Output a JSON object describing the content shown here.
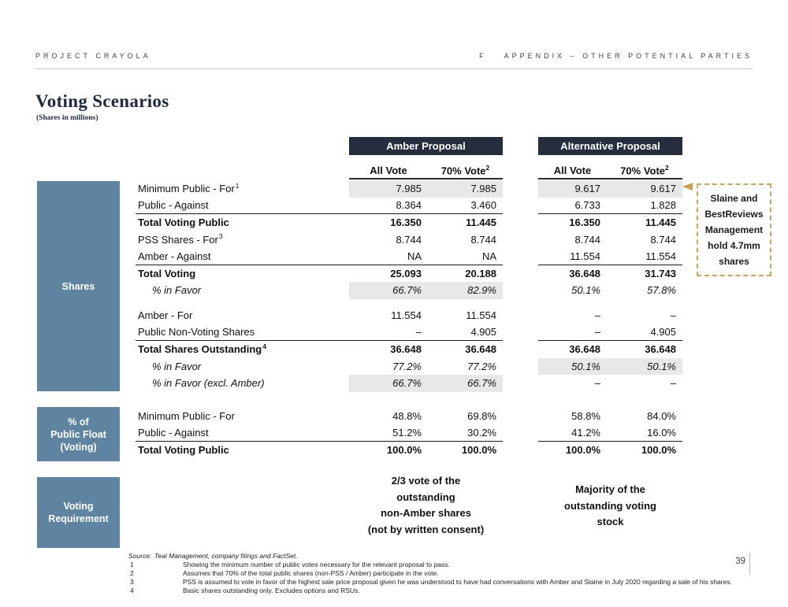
{
  "header": {
    "project": "PROJECT CRAYOLA",
    "section_letter": "F",
    "section_title": "APPENDIX – OTHER POTENTIAL PARTIES"
  },
  "title": "Voting Scenarios",
  "subtitle": "(Shares in millions)",
  "proposal_headers": {
    "amber": "Amber Proposal",
    "alternative": "Alternative Proposal"
  },
  "column_headers": {
    "all_vote": "All Vote",
    "pct_vote": "70% Vote",
    "pct_vote_sup": "2"
  },
  "sidebar": {
    "shares": {
      "lines": [
        "Shares"
      ]
    },
    "public_float": {
      "lines": [
        "% of",
        "Public Float",
        "(Voting)"
      ]
    },
    "voting_requirement": {
      "lines": [
        "Voting",
        "Requirement"
      ]
    }
  },
  "table": {
    "shares_rows": [
      {
        "label": "Minimum Public - For",
        "sup": "1",
        "cells": [
          "7.985",
          "7.985",
          "9.617",
          "9.617"
        ],
        "shade": [
          true,
          true
        ]
      },
      {
        "label": "Public - Against",
        "cells": [
          "8.364",
          "3.460",
          "6.733",
          "1.828"
        ],
        "underline": true
      },
      {
        "label": "Total Voting Public",
        "cells": [
          "16.350",
          "11.445",
          "16.350",
          "11.445"
        ],
        "bold": true
      },
      {
        "label": "PSS Shares - For",
        "sup": "3",
        "cells": [
          "8.744",
          "8.744",
          "8.744",
          "8.744"
        ]
      },
      {
        "label": "Amber - Against",
        "cells": [
          "NA",
          "NA",
          "11.554",
          "11.554"
        ],
        "underline": true
      },
      {
        "label": "Total Voting",
        "cells": [
          "25.093",
          "20.188",
          "36.648",
          "31.743"
        ],
        "bold": true
      },
      {
        "label": "% in Favor",
        "cells": [
          "66.7%",
          "82.9%",
          "50.1%",
          "57.8%"
        ],
        "italic": true,
        "shade": [
          true,
          false
        ]
      },
      {
        "spacer": true
      },
      {
        "label": "Amber - For",
        "cells": [
          "11.554",
          "11.554",
          "–",
          "–"
        ]
      },
      {
        "label": "Public Non-Voting Shares",
        "cells": [
          "–",
          "4.905",
          "–",
          "4.905"
        ],
        "underline": true
      },
      {
        "label": "Total Shares Outstanding",
        "sup": "4",
        "cells": [
          "36.648",
          "36.648",
          "36.648",
          "36.648"
        ],
        "bold": true
      },
      {
        "label": "% in Favor",
        "cells": [
          "77.2%",
          "77.2%",
          "50.1%",
          "50.1%"
        ],
        "italic": true,
        "shade": [
          false,
          true
        ]
      },
      {
        "label": "% in Favor (excl. Amber)",
        "cells": [
          "66.7%",
          "66.7%",
          "–",
          "–"
        ],
        "italic": true,
        "shade": [
          true,
          false
        ]
      }
    ],
    "public_float_rows": [
      {
        "label": "Minimum Public - For",
        "cells": [
          "48.8%",
          "69.8%",
          "58.8%",
          "84.0%"
        ]
      },
      {
        "label": "Public - Against",
        "cells": [
          "51.2%",
          "30.2%",
          "41.2%",
          "16.0%"
        ],
        "underline": true
      },
      {
        "label": "Total Voting Public",
        "cells": [
          "100.0%",
          "100.0%",
          "100.0%",
          "100.0%"
        ],
        "bold": true
      }
    ]
  },
  "voting_requirement": {
    "amber": {
      "lines": [
        "2/3 vote of the",
        "outstanding",
        "non-Amber shares",
        "(not by written consent)"
      ]
    },
    "alternative": {
      "lines": [
        "Majority of the",
        "outstanding voting",
        "stock"
      ]
    }
  },
  "callout": {
    "lines": [
      "Slaine and",
      "BestReviews",
      "Management",
      "hold 4.7mm",
      "shares"
    ]
  },
  "footer": {
    "source_label": "Source:",
    "source_text": "Teal Management, company filings and FactSet.",
    "footnotes": [
      {
        "num": "1",
        "text": "Showing the minimum number of public votes necessary for the relevant proposal to pass."
      },
      {
        "num": "2",
        "text": "Assumes that 70% of the total public shares (non-PSS / Amber) participate in the vote."
      },
      {
        "num": "3",
        "text": "PSS is assumed to vote in favor of the highest sale price proposal given he was understood to have had conversations with Amber and Slaine in July 2020 regarding a sale of his shares."
      },
      {
        "num": "4",
        "text": "Basic shares outstanding only. Excludes options and RSUs."
      }
    ],
    "page_number": "39"
  },
  "colors": {
    "header_navy": "#262d3f",
    "sidebar_steel_blue": "#5e84a1",
    "row_shade_gray": "#e8e8e8",
    "callout_gold": "#cfa14f"
  }
}
